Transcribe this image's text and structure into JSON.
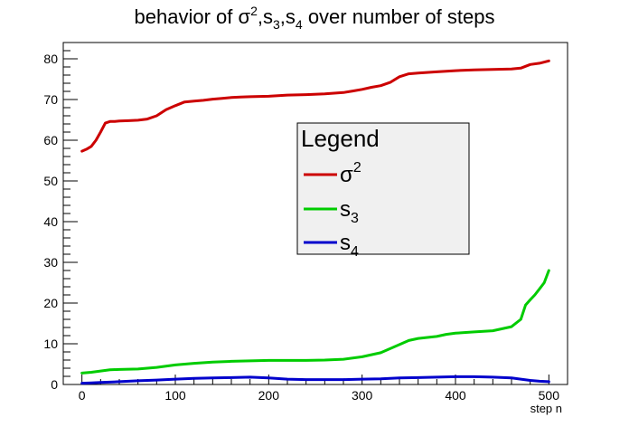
{
  "chart_data": {
    "type": "line",
    "title": {
      "prefix": "behavior of ",
      "sigma": "σ",
      "sigma_sup": "2",
      "sep1": ",s",
      "s3_sub": "3",
      "sep2": ",s",
      "s4_sub": "4",
      "suffix": " over number of steps"
    },
    "xlabel": "step n",
    "ylabel": "",
    "xlim": [
      -20,
      520
    ],
    "ylim": [
      0,
      84
    ],
    "x_ticks": [
      0,
      100,
      200,
      300,
      400,
      500
    ],
    "y_ticks": [
      0,
      10,
      20,
      30,
      40,
      50,
      60,
      70,
      80
    ],
    "grid": false,
    "legend": {
      "title": "Legend",
      "placement": "center-right",
      "entries": [
        {
          "base": "σ",
          "script": "2",
          "script_type": "sup",
          "series": 0
        },
        {
          "base": "s",
          "script": "3",
          "script_type": "sub",
          "series": 1
        },
        {
          "base": "s",
          "script": "4",
          "script_type": "sub",
          "series": 2
        }
      ]
    },
    "series": [
      {
        "name": "σ²",
        "color": "#cc0000",
        "x": [
          0,
          5,
          10,
          15,
          20,
          25,
          30,
          35,
          40,
          50,
          60,
          70,
          80,
          90,
          100,
          110,
          120,
          130,
          140,
          150,
          160,
          170,
          180,
          200,
          220,
          240,
          260,
          280,
          290,
          300,
          310,
          320,
          330,
          340,
          350,
          360,
          380,
          400,
          420,
          440,
          460,
          470,
          480,
          490,
          500
        ],
        "y": [
          57.3,
          57.8,
          58.5,
          60,
          62,
          64.2,
          64.6,
          64.6,
          64.7,
          64.8,
          64.9,
          65.2,
          66,
          67.5,
          68.5,
          69.4,
          69.6,
          69.8,
          70.1,
          70.3,
          70.5,
          70.6,
          70.7,
          70.8,
          71.1,
          71.2,
          71.4,
          71.7,
          72.1,
          72.5,
          73,
          73.4,
          74.2,
          75.6,
          76.3,
          76.5,
          76.8,
          77.1,
          77.3,
          77.4,
          77.5,
          77.7,
          78.6,
          78.9,
          79.5
        ]
      },
      {
        "name": "s₃",
        "color": "#00cc00",
        "x": [
          0,
          10,
          20,
          30,
          40,
          60,
          80,
          100,
          120,
          140,
          160,
          180,
          200,
          220,
          240,
          260,
          280,
          300,
          320,
          340,
          350,
          360,
          380,
          390,
          400,
          420,
          440,
          460,
          470,
          475,
          480,
          485,
          490,
          495,
          500
        ],
        "y": [
          2.8,
          3,
          3.3,
          3.6,
          3.7,
          3.8,
          4.2,
          4.8,
          5.2,
          5.5,
          5.7,
          5.8,
          5.9,
          5.9,
          5.9,
          6,
          6.2,
          6.8,
          7.8,
          9.8,
          10.8,
          11.3,
          11.8,
          12.3,
          12.6,
          12.9,
          13.2,
          14.2,
          16,
          19.5,
          20.8,
          22,
          23.5,
          25,
          28
        ]
      },
      {
        "name": "s₄",
        "color": "#0000cc",
        "x": [
          0,
          10,
          20,
          40,
          60,
          80,
          100,
          120,
          140,
          160,
          180,
          200,
          220,
          240,
          260,
          280,
          300,
          320,
          340,
          360,
          380,
          400,
          420,
          440,
          460,
          470,
          480,
          490,
          500
        ],
        "y": [
          0.3,
          0.4,
          0.5,
          0.7,
          0.9,
          1.1,
          1.3,
          1.5,
          1.6,
          1.7,
          1.8,
          1.6,
          1.3,
          1.2,
          1.2,
          1.2,
          1.3,
          1.4,
          1.6,
          1.7,
          1.8,
          1.9,
          1.9,
          1.8,
          1.6,
          1.3,
          1.0,
          0.8,
          0.7
        ]
      }
    ]
  }
}
